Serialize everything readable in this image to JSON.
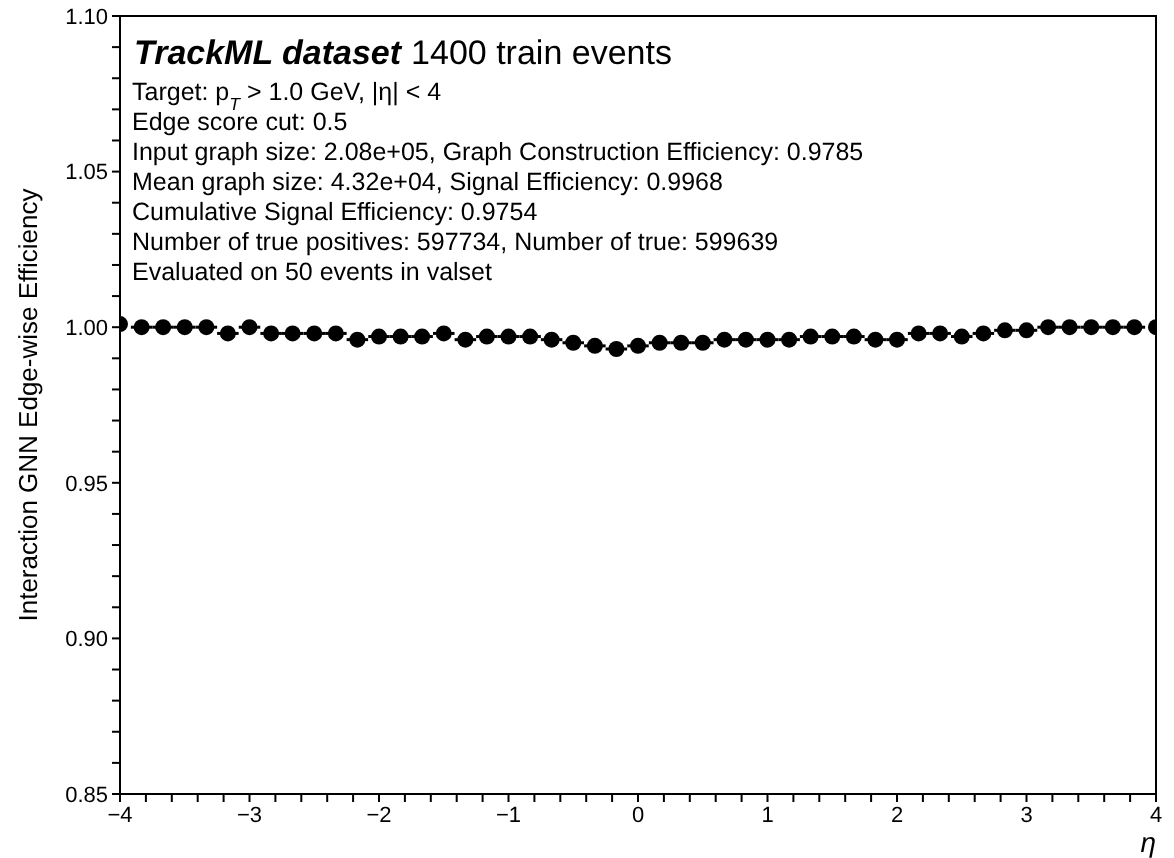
{
  "chart_data": {
    "type": "scatter",
    "title": "TrackML dataset",
    "subtitle": "1400 train events",
    "xlabel": "η",
    "ylabel": "Interaction GNN Edge-wise Efficiency",
    "annotations": [
      "Target: p$_{T}$ > 1.0 GeV, |η| < 4",
      "Edge score cut: 0.5",
      "Input graph size: 2.08e+05, Graph Construction Efficiency: 0.9785",
      "Mean graph size: 4.32e+04, Signal Efficiency: 0.9968",
      "Cumulative Signal Efficiency: 0.9754",
      "Number of true positives: 597734, Number of true: 599639",
      "Evaluated on 50 events in valset"
    ],
    "x": [
      -4,
      -3.833,
      -3.667,
      -3.5,
      -3.333,
      -3.167,
      -3,
      -2.833,
      -2.667,
      -2.5,
      -2.333,
      -2.167,
      -2,
      -1.833,
      -1.667,
      -1.5,
      -1.333,
      -1.167,
      -1,
      -0.833,
      -0.667,
      -0.5,
      -0.333,
      -0.167,
      0,
      0.167,
      0.333,
      0.5,
      0.667,
      0.833,
      1,
      1.167,
      1.333,
      1.5,
      1.667,
      1.833,
      2,
      2.167,
      2.333,
      2.5,
      2.667,
      2.833,
      3,
      3.167,
      3.333,
      3.5,
      3.667,
      3.833,
      4
    ],
    "series": [
      {
        "color": "#000000",
        "values": [
          1.001,
          1.0,
          1.0,
          1.0,
          1.0,
          0.998,
          1.0,
          0.998,
          0.998,
          0.998,
          0.998,
          0.996,
          0.997,
          0.997,
          0.997,
          0.998,
          0.996,
          0.997,
          0.997,
          0.997,
          0.996,
          0.995,
          0.994,
          0.993,
          0.994,
          0.995,
          0.995,
          0.995,
          0.996,
          0.996,
          0.996,
          0.996,
          0.997,
          0.997,
          0.997,
          0.996,
          0.996,
          0.998,
          0.998,
          0.997,
          0.998,
          0.999,
          0.999,
          1.0,
          1.0,
          1.0,
          1.0,
          1.0,
          1.0
        ],
        "xerrors": [
          null,
          0.083,
          0.083,
          0.083,
          0.083,
          0.083,
          0.083,
          0.083,
          0.083,
          0.083,
          0.083,
          0.083,
          0.083,
          0.083,
          0.083,
          0.083,
          0.083,
          0.083,
          0.083,
          0.083,
          0.083,
          0.083,
          0.083,
          0.083,
          0.083,
          0.083,
          0.083,
          0.083,
          0.083,
          0.083,
          0.083,
          0.083,
          0.083,
          0.083,
          0.083,
          0.083,
          0.083,
          0.083,
          0.083,
          0.083,
          0.083,
          0.083,
          0.083,
          0.083,
          0.083,
          0.083,
          0.083,
          0.083,
          null
        ]
      }
    ],
    "marker": "circle",
    "xlim": [
      -4,
      4
    ],
    "ylim": [
      0.85,
      1.1
    ],
    "xticks": [
      -4,
      {
        "value": -3.8,
        "label": null
      },
      {
        "value": -3.6,
        "label": null
      },
      {
        "value": -3.4,
        "label": null
      },
      {
        "value": -3.2,
        "label": null
      },
      -3,
      {
        "value": -2.8,
        "label": null
      },
      {
        "value": -2.6,
        "label": null
      },
      {
        "value": -2.4,
        "label": null
      },
      {
        "value": -2.2,
        "label": null
      },
      -2,
      {
        "value": -1.8,
        "label": null
      },
      {
        "value": -1.6,
        "label": null
      },
      {
        "value": -1.4,
        "label": null
      },
      {
        "value": -1.2,
        "label": null
      },
      -1,
      {
        "value": -0.8,
        "label": null
      },
      {
        "value": -0.6,
        "label": null
      },
      {
        "value": -0.4,
        "label": null
      },
      {
        "value": -0.2,
        "label": null
      },
      0,
      {
        "value": 0.2,
        "label": null
      },
      {
        "value": 0.4,
        "label": null
      },
      {
        "value": 0.6,
        "label": null
      },
      {
        "value": 0.8,
        "label": null
      },
      1,
      {
        "value": 1.2,
        "label": null
      },
      {
        "value": 1.4,
        "label": null
      },
      {
        "value": 1.6,
        "label": null
      },
      {
        "value": 1.8,
        "label": null
      },
      2,
      {
        "value": 2.2,
        "label": null
      },
      {
        "value": 2.4,
        "label": null
      },
      {
        "value": 2.6,
        "label": null
      },
      {
        "value": 2.8,
        "label": null
      },
      3,
      {
        "value": 3.2,
        "label": null
      },
      {
        "value": 3.4,
        "label": null
      },
      {
        "value": 3.6,
        "label": null
      },
      {
        "value": 3.8,
        "label": null
      },
      4
    ],
    "yticks": [
      {
        "value": 0.85,
        "label": "0.85"
      },
      {
        "value": 0.86,
        "label": null
      },
      {
        "value": 0.87,
        "label": null
      },
      {
        "value": 0.88,
        "label": null
      },
      {
        "value": 0.89,
        "label": null
      },
      {
        "value": 0.9,
        "label": "0.90"
      },
      {
        "value": 0.91,
        "label": null
      },
      {
        "value": 0.92,
        "label": null
      },
      {
        "value": 0.93,
        "label": null
      },
      {
        "value": 0.94,
        "label": null
      },
      {
        "value": 0.95,
        "label": "0.95"
      },
      {
        "value": 0.96,
        "label": null
      },
      {
        "value": 0.97,
        "label": null
      },
      {
        "value": 0.98,
        "label": null
      },
      {
        "value": 0.99,
        "label": null
      },
      {
        "value": 1.0,
        "label": "1.00"
      },
      {
        "value": 1.01,
        "label": null
      },
      {
        "value": 1.02,
        "label": null
      },
      {
        "value": 1.03,
        "label": null
      },
      {
        "value": 1.04,
        "label": null
      },
      {
        "value": 1.05,
        "label": "1.05"
      },
      {
        "value": 1.06,
        "label": null
      },
      {
        "value": 1.07,
        "label": null
      },
      {
        "value": 1.08,
        "label": null
      },
      {
        "value": 1.09,
        "label": null
      },
      {
        "value": 1.1,
        "label": "1.10"
      }
    ],
    "grid": false,
    "legend": false
  }
}
